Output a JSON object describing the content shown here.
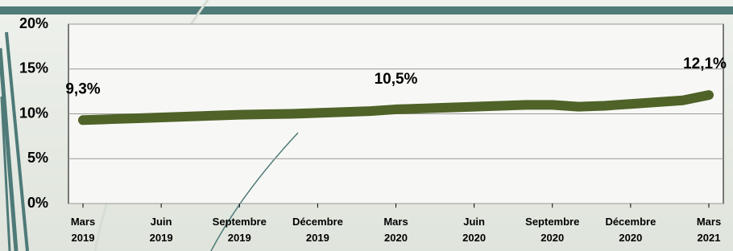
{
  "chart_data": {
    "type": "line",
    "categories": [
      "Mars 2019",
      null,
      null,
      "Juin 2019",
      null,
      null,
      "Septembre 2019",
      null,
      null,
      "Décembre 2019",
      null,
      null,
      "Mars 2020",
      null,
      null,
      "Juin 2020",
      null,
      null,
      "Septembre 2020",
      null,
      null,
      "Décembre 2020",
      null,
      null,
      "Mars 2021"
    ],
    "series": [
      {
        "color": "#4f6228",
        "values": [
          9.3,
          9.4,
          9.5,
          9.6,
          9.7,
          9.8,
          9.9,
          9.95,
          10.0,
          10.1,
          10.2,
          10.3,
          10.5,
          10.6,
          10.7,
          10.8,
          10.9,
          11.0,
          11.0,
          10.8,
          10.9,
          11.1,
          11.3,
          11.5,
          12.1
        ],
        "value_labels": [
          "9,3%",
          null,
          null,
          null,
          null,
          null,
          null,
          null,
          null,
          null,
          null,
          null,
          "10,5%",
          null,
          null,
          null,
          null,
          null,
          null,
          null,
          null,
          null,
          null,
          null,
          "12,1%"
        ]
      }
    ],
    "ylim": [
      0,
      20
    ],
    "yticks": [
      {
        "value": 0,
        "label": "0%"
      },
      {
        "value": 5,
        "label": "5%"
      },
      {
        "value": 10,
        "label": "10%"
      },
      {
        "value": 15,
        "label": "15%"
      },
      {
        "value": 20,
        "label": "20%"
      }
    ],
    "grid": true
  }
}
